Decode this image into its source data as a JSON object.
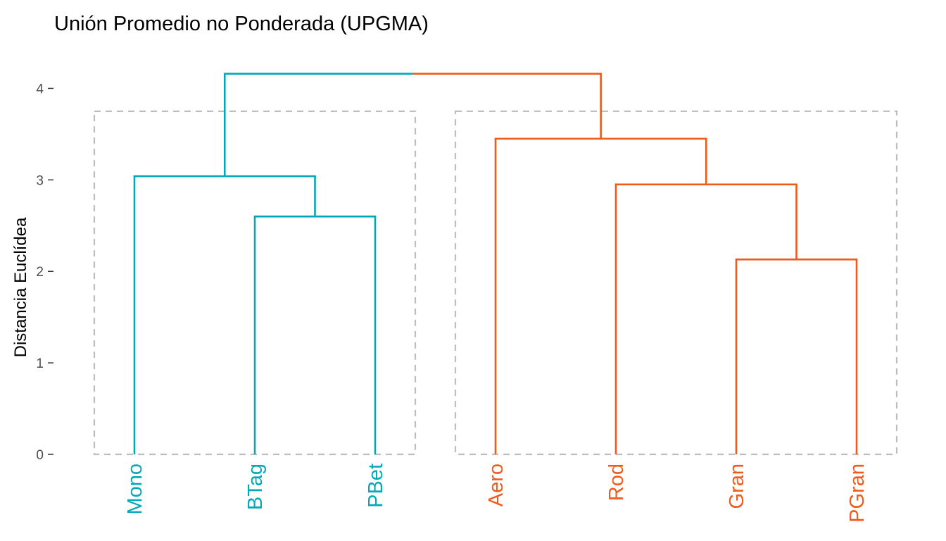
{
  "chart_data": {
    "type": "dendrogram",
    "title": "Unión Promedio no Ponderada (UPGMA)",
    "ylabel": "Distancia Euclídea",
    "xlabel": "",
    "ylim": [
      0,
      4.35
    ],
    "yticks": [
      "0",
      "1",
      "2",
      "3",
      "4"
    ],
    "grid": false,
    "colors": {
      "cluster1": "#00A9B5",
      "cluster2": "#F05A1A",
      "rect": "#BEBEBE",
      "axis_text": "#4D4D4D"
    },
    "leaves": [
      {
        "label": "Mono",
        "cluster": 1
      },
      {
        "label": "BTag",
        "cluster": 1
      },
      {
        "label": "PBet",
        "cluster": 1
      },
      {
        "label": "Aero",
        "cluster": 2
      },
      {
        "label": "Rod",
        "cluster": 2
      },
      {
        "label": "Gran",
        "cluster": 2
      },
      {
        "label": "PGran",
        "cluster": 2
      }
    ],
    "merges": [
      {
        "left": 1,
        "right": 2,
        "height": 2.6,
        "cluster": 1
      },
      {
        "left": 0,
        "right": "m0",
        "height": 3.04,
        "cluster": 1
      },
      {
        "left": 5,
        "right": 6,
        "height": 2.13,
        "cluster": 2
      },
      {
        "left": 4,
        "right": "m2",
        "height": 2.95,
        "cluster": 2
      },
      {
        "left": 3,
        "right": "m3",
        "height": 3.45,
        "cluster": 2
      },
      {
        "left": "m1",
        "right": "m4",
        "height": 4.16,
        "cluster": 0
      }
    ],
    "cluster_rect_height": 3.75
  }
}
